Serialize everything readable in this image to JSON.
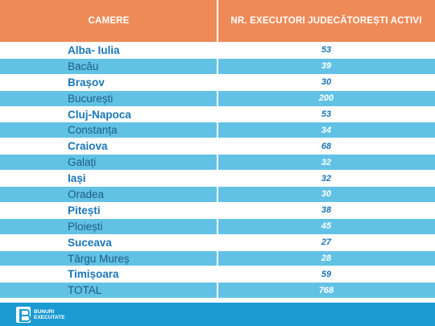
{
  "chart_data": {
    "type": "table",
    "columns": [
      "CAMERE",
      "NR. EXECUTORI JUDECĂTOREȘTI ACTIVI"
    ],
    "rows": [
      {
        "name": "Alba- Iulia",
        "value": 53
      },
      {
        "name": "Bacău",
        "value": 39
      },
      {
        "name": "Brașov",
        "value": 30
      },
      {
        "name": "București",
        "value": 200
      },
      {
        "name": "Cluj-Napoca",
        "value": 53
      },
      {
        "name": "Constanța",
        "value": 34
      },
      {
        "name": "Craiova",
        "value": 68
      },
      {
        "name": "Galați",
        "value": 32
      },
      {
        "name": "Iași",
        "value": 32
      },
      {
        "name": "Oradea",
        "value": 30
      },
      {
        "name": "Pitești",
        "value": 38
      },
      {
        "name": "Ploiești",
        "value": 45
      },
      {
        "name": "Suceava",
        "value": 27
      },
      {
        "name": "Târgu Mureș",
        "value": 28
      },
      {
        "name": "Timișoara",
        "value": 59
      }
    ],
    "total": {
      "name": "TOTAL",
      "value": 768
    }
  },
  "colors": {
    "header": "#EE8A57",
    "row_blue": "#62C2E5",
    "footer": "#1B9BD2",
    "text_dark_blue": "#1976B7"
  },
  "logo": {
    "line1": "BUNURI",
    "line2": "EXECUTATE",
    "icon": "b-logo-icon"
  }
}
